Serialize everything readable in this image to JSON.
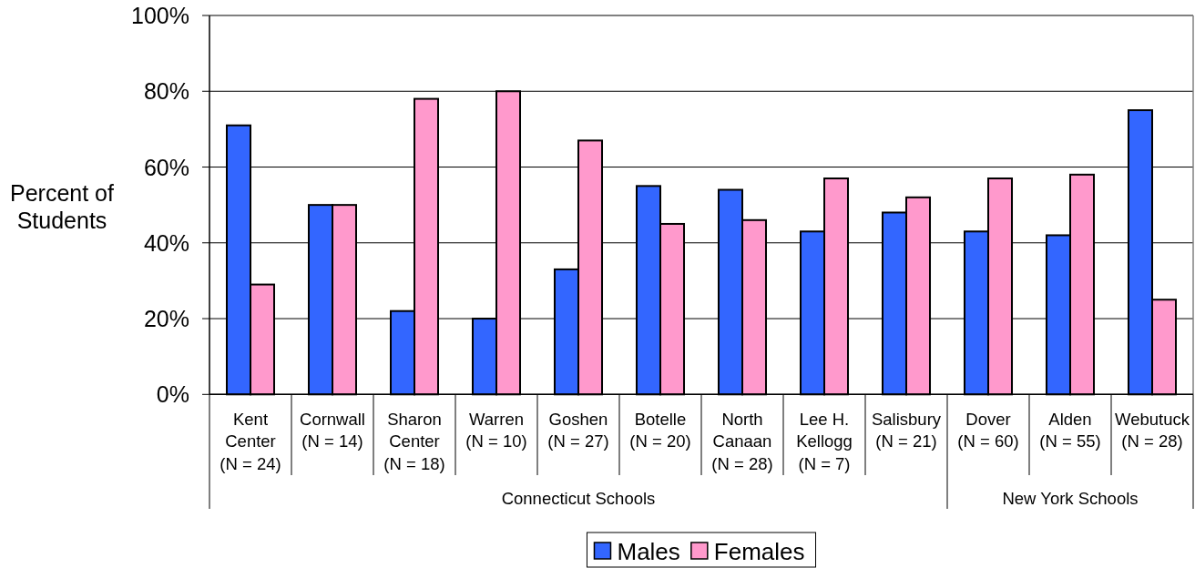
{
  "chart_data": {
    "type": "bar",
    "categories": [
      "Kent Center (N = 24)",
      "Cornwall (N = 14)",
      "Sharon Center (N = 18)",
      "Warren (N = 10)",
      "Goshen (N = 27)",
      "Botelle (N = 20)",
      "North Canaan (N = 28)",
      "Lee H. Kellogg (N = 7)",
      "Salisbury (N = 21)",
      "Dover (N = 60)",
      "Alden (N = 55)",
      "Webutuck (N = 28)"
    ],
    "series": [
      {
        "name": "Males",
        "color": "#3366ff",
        "values": [
          71,
          50,
          22,
          20,
          33,
          55,
          54,
          43,
          48,
          43,
          42,
          75
        ]
      },
      {
        "name": "Females",
        "color": "#ff99cc",
        "values": [
          29,
          50,
          78,
          80,
          67,
          45,
          46,
          57,
          52,
          57,
          58,
          25
        ]
      }
    ],
    "ylabel": "Percent of Students",
    "ylim": [
      0,
      100
    ],
    "yticks": [
      {
        "value": 0,
        "label": "0%"
      },
      {
        "value": 20,
        "label": "20%"
      },
      {
        "value": 40,
        "label": "40%"
      },
      {
        "value": 60,
        "label": "60%"
      },
      {
        "value": 80,
        "label": "80%"
      },
      {
        "value": 100,
        "label": "100%"
      }
    ],
    "grid": "y",
    "legend": "bottom",
    "annotations": [
      "Connecticut Schools",
      "New York Schools"
    ]
  }
}
